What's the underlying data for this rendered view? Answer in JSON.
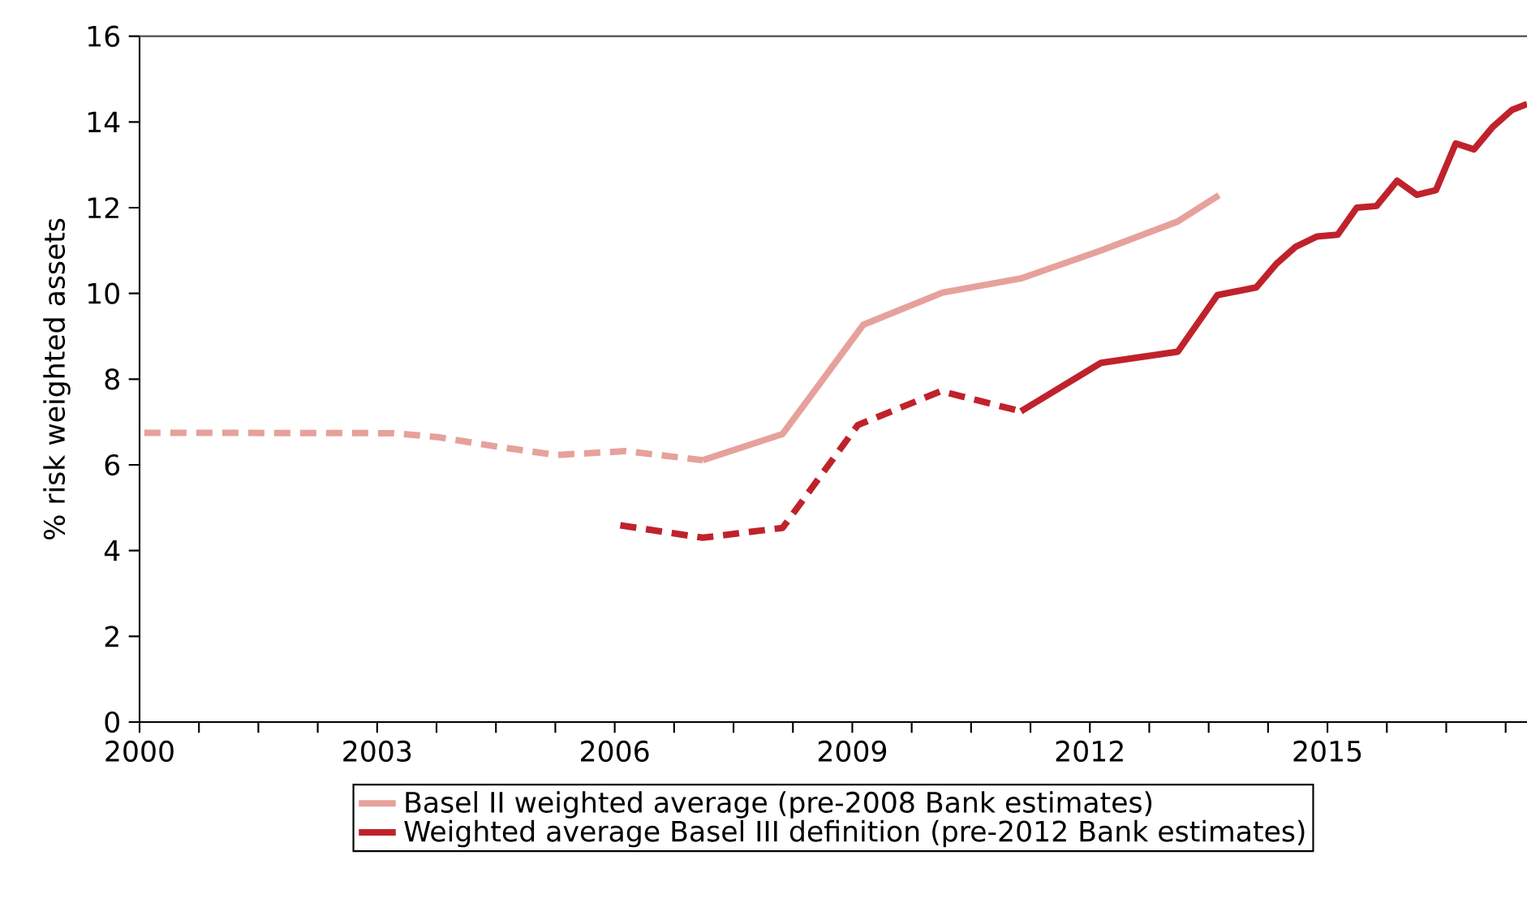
{
  "chart_data": {
    "type": "line",
    "ylabel": "% risk weighted assets",
    "xlim": [
      2000,
      2017.52
    ],
    "ylim": [
      0,
      16
    ],
    "xticks": [
      2000,
      {
        "value": 2000.75,
        "label": null
      },
      {
        "value": 2001.5,
        "label": null
      },
      {
        "value": 2002.25,
        "label": null
      },
      2003,
      {
        "value": 2003.75,
        "label": null
      },
      {
        "value": 2004.5,
        "label": null
      },
      {
        "value": 2005.25,
        "label": null
      },
      2006,
      {
        "value": 2006.75,
        "label": null
      },
      {
        "value": 2007.5,
        "label": null
      },
      {
        "value": 2008.25,
        "label": null
      },
      2009,
      {
        "value": 2009.75,
        "label": null
      },
      {
        "value": 2010.5,
        "label": null
      },
      {
        "value": 2011.25,
        "label": null
      },
      2012,
      {
        "value": 2012.75,
        "label": null
      },
      {
        "value": 2013.5,
        "label": null
      },
      {
        "value": 2014.25,
        "label": null
      },
      2015,
      {
        "value": 2015.75,
        "label": null
      },
      {
        "value": 2016.5,
        "label": null
      },
      {
        "value": 2017.25,
        "label": null
      }
    ],
    "yticks": [
      0,
      2,
      4,
      6,
      8,
      10,
      12,
      14,
      16
    ],
    "grid": false,
    "legend": "bottom",
    "series": [
      {
        "color": "#e6a19b",
        "line_style": "dashed",
        "x": [
          2000.06,
          2003.2,
          2003.76,
          2004.53,
          2005.26,
          2006.14,
          2007.11
        ],
        "values": [
          6.75,
          6.74,
          6.65,
          6.42,
          6.23,
          6.32,
          6.11
        ]
      },
      {
        "name": "Basel II weighted average (pre-2008 Bank estimates)",
        "color": "#e6a19b",
        "line_style": "solid",
        "x": [
          2007.11,
          2008.12,
          2009.14,
          2010.14,
          2011.13,
          2012.14,
          2013.11,
          2013.63
        ],
        "values": [
          6.11,
          6.72,
          9.27,
          10.02,
          10.35,
          11.0,
          11.68,
          12.29
        ]
      },
      {
        "color": "#c0222b",
        "line_style": "dashed",
        "x": [
          2006.07,
          2007.11,
          2008.12,
          2009.07,
          2010.12,
          2011.13
        ],
        "values": [
          4.59,
          4.3,
          4.53,
          6.93,
          7.72,
          7.25
        ]
      },
      {
        "name": "Weighted average Basel III definition (pre-2012 Bank estimates)",
        "color": "#c0222b",
        "line_style": "solid",
        "x": [
          2011.13,
          2012.14,
          2013.11,
          2013.61,
          2014.1,
          2014.36,
          2014.6,
          2014.87,
          2015.13,
          2015.37,
          2015.62,
          2015.88,
          2016.13,
          2016.37,
          2016.62,
          2016.85,
          2017.09,
          2017.33,
          2017.52
        ],
        "values": [
          7.25,
          8.38,
          8.64,
          9.96,
          10.14,
          10.7,
          11.09,
          11.33,
          11.37,
          12.0,
          12.04,
          12.63,
          12.3,
          12.41,
          13.5,
          13.36,
          13.89,
          14.28,
          14.42
        ]
      }
    ]
  }
}
